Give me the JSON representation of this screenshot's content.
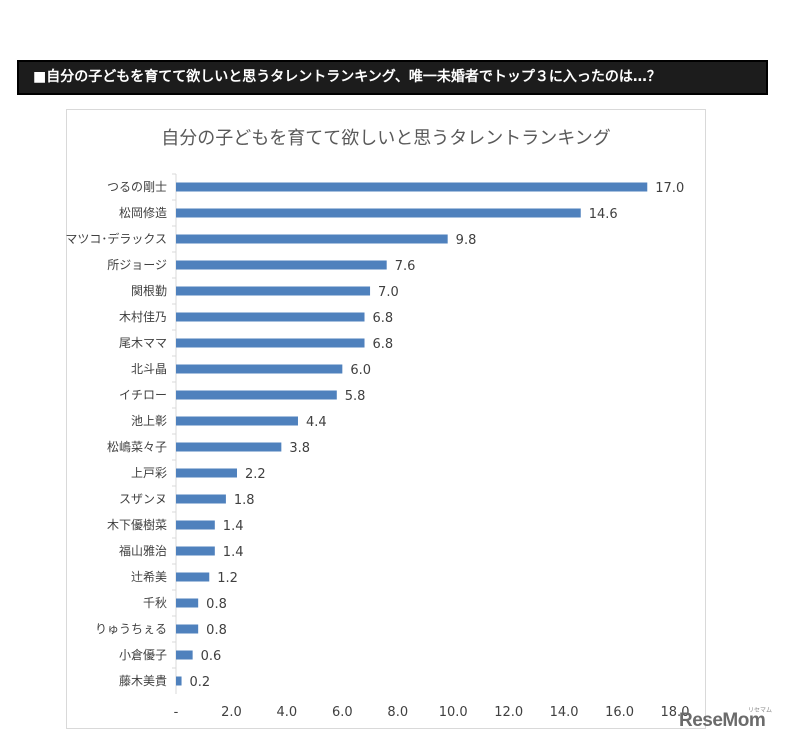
{
  "banner": {
    "text": "■自分の子どもを育てて欲しいと思うタレントランキング、唯一未婚者でトップ３に入ったのは…？"
  },
  "logo": {
    "text": "ReseMom",
    "sub": "リセマム"
  },
  "colors": {
    "bar": "#4f81bd",
    "axis": "#d9d9d9",
    "text": "#404040",
    "banner_bg": "#1c1c1c"
  },
  "chart_data": {
    "type": "bar",
    "orientation": "horizontal",
    "title": "自分の子どもを育てて欲しいと思うタレントランキング",
    "categories": [
      "つるの剛士",
      "松岡修造",
      "マツコ･デラックス",
      "所ジョージ",
      "関根勤",
      "木村佳乃",
      "尾木ママ",
      "北斗晶",
      "イチロー",
      "池上彰",
      "松嶋菜々子",
      "上戸彩",
      "スザンヌ",
      "木下優樹菜",
      "福山雅治",
      "辻希美",
      "千秋",
      "りゅうちぇる",
      "小倉優子",
      "藤木美貴"
    ],
    "values": [
      17.0,
      14.6,
      9.8,
      7.6,
      7.0,
      6.8,
      6.8,
      6.0,
      5.8,
      4.4,
      3.8,
      2.2,
      1.8,
      1.4,
      1.4,
      1.2,
      0.8,
      0.8,
      0.6,
      0.2
    ],
    "value_labels": [
      "17.0",
      "14.6",
      "9.8",
      "7.6",
      "7.0",
      "6.8",
      "6.8",
      "6.0",
      "5.8",
      "4.4",
      "3.8",
      "2.2",
      "1.8",
      "1.4",
      "1.4",
      "1.2",
      "0.8",
      "0.8",
      "0.6",
      "0.2"
    ],
    "xlim": [
      0,
      18
    ],
    "xticks": [
      "-",
      "2.0",
      "4.0",
      "6.0",
      "8.0",
      "10.0",
      "12.0",
      "14.0",
      "16.0",
      "18.0"
    ],
    "xlabel": "",
    "ylabel": "",
    "grid": false,
    "legend": "none"
  }
}
